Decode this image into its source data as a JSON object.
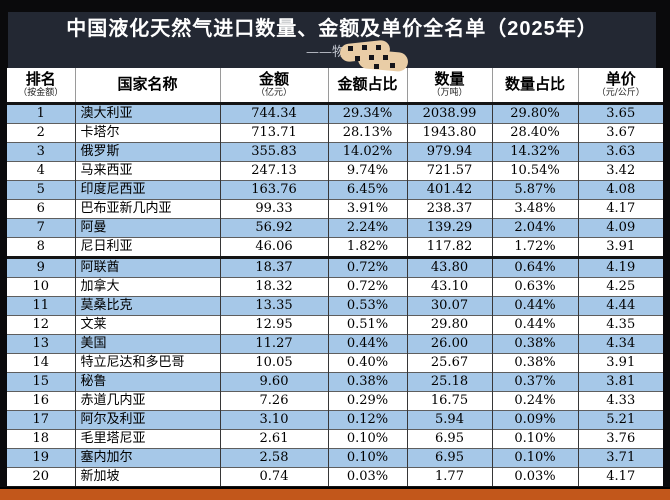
{
  "header": {
    "title": "中国液化天然气进口数量、金额及单价全名单（2025年）",
    "subtitle_prefix": "——物流"
  },
  "colors": {
    "panel_bg": "#232833",
    "row_blue": "#a6c8e8",
    "row_white": "#ffffff",
    "accent_bar": "#c2571b",
    "sticker": "#e9cda6"
  },
  "table": {
    "columns": [
      {
        "label": "排名",
        "sub": "（按金额）"
      },
      {
        "label": "国家名称",
        "sub": ""
      },
      {
        "label": "金额",
        "sub": "（亿元）"
      },
      {
        "label": "金额占比",
        "sub": ""
      },
      {
        "label": "数量",
        "sub": "（万吨）"
      },
      {
        "label": "数量占比",
        "sub": ""
      },
      {
        "label": "单价",
        "sub": "（元/公斤）"
      }
    ],
    "rows": [
      {
        "rank": "1",
        "country": "澳大利亚",
        "amount": "744.34",
        "amount_share": "29.34%",
        "quantity": "2038.99",
        "quantity_share": "29.80%",
        "price": "3.65"
      },
      {
        "rank": "2",
        "country": "卡塔尔",
        "amount": "713.71",
        "amount_share": "28.13%",
        "quantity": "1943.80",
        "quantity_share": "28.40%",
        "price": "3.67"
      },
      {
        "rank": "3",
        "country": "俄罗斯",
        "amount": "355.83",
        "amount_share": "14.02%",
        "quantity": "979.94",
        "quantity_share": "14.32%",
        "price": "3.63"
      },
      {
        "rank": "4",
        "country": "马来西亚",
        "amount": "247.13",
        "amount_share": "9.74%",
        "quantity": "721.57",
        "quantity_share": "10.54%",
        "price": "3.42"
      },
      {
        "rank": "5",
        "country": "印度尼西亚",
        "amount": "163.76",
        "amount_share": "6.45%",
        "quantity": "401.42",
        "quantity_share": "5.87%",
        "price": "4.08"
      },
      {
        "rank": "6",
        "country": "巴布亚新几内亚",
        "amount": "99.33",
        "amount_share": "3.91%",
        "quantity": "238.37",
        "quantity_share": "3.48%",
        "price": "4.17"
      },
      {
        "rank": "7",
        "country": "阿曼",
        "amount": "56.92",
        "amount_share": "2.24%",
        "quantity": "139.29",
        "quantity_share": "2.04%",
        "price": "4.09"
      },
      {
        "rank": "8",
        "country": "尼日利亚",
        "amount": "46.06",
        "amount_share": "1.82%",
        "quantity": "117.82",
        "quantity_share": "1.72%",
        "price": "3.91"
      },
      {
        "rank": "9",
        "country": "阿联酋",
        "amount": "18.37",
        "amount_share": "0.72%",
        "quantity": "43.80",
        "quantity_share": "0.64%",
        "price": "4.19"
      },
      {
        "rank": "10",
        "country": "加拿大",
        "amount": "18.32",
        "amount_share": "0.72%",
        "quantity": "43.10",
        "quantity_share": "0.63%",
        "price": "4.25"
      },
      {
        "rank": "11",
        "country": "莫桑比克",
        "amount": "13.35",
        "amount_share": "0.53%",
        "quantity": "30.07",
        "quantity_share": "0.44%",
        "price": "4.44"
      },
      {
        "rank": "12",
        "country": "文莱",
        "amount": "12.95",
        "amount_share": "0.51%",
        "quantity": "29.80",
        "quantity_share": "0.44%",
        "price": "4.35"
      },
      {
        "rank": "13",
        "country": "美国",
        "amount": "11.27",
        "amount_share": "0.44%",
        "quantity": "26.00",
        "quantity_share": "0.38%",
        "price": "4.34"
      },
      {
        "rank": "14",
        "country": "特立尼达和多巴哥",
        "amount": "10.05",
        "amount_share": "0.40%",
        "quantity": "25.67",
        "quantity_share": "0.38%",
        "price": "3.91"
      },
      {
        "rank": "15",
        "country": "秘鲁",
        "amount": "9.60",
        "amount_share": "0.38%",
        "quantity": "25.18",
        "quantity_share": "0.37%",
        "price": "3.81"
      },
      {
        "rank": "16",
        "country": "赤道几内亚",
        "amount": "7.26",
        "amount_share": "0.29%",
        "quantity": "16.75",
        "quantity_share": "0.24%",
        "price": "4.33"
      },
      {
        "rank": "17",
        "country": "阿尔及利亚",
        "amount": "3.10",
        "amount_share": "0.12%",
        "quantity": "5.94",
        "quantity_share": "0.09%",
        "price": "5.21"
      },
      {
        "rank": "18",
        "country": "毛里塔尼亚",
        "amount": "2.61",
        "amount_share": "0.10%",
        "quantity": "6.95",
        "quantity_share": "0.10%",
        "price": "3.76"
      },
      {
        "rank": "19",
        "country": "塞内加尔",
        "amount": "2.58",
        "amount_share": "0.10%",
        "quantity": "6.95",
        "quantity_share": "0.10%",
        "price": "3.71"
      },
      {
        "rank": "20",
        "country": "新加坡",
        "amount": "0.74",
        "amount_share": "0.03%",
        "quantity": "1.77",
        "quantity_share": "0.03%",
        "price": "4.17"
      }
    ]
  }
}
